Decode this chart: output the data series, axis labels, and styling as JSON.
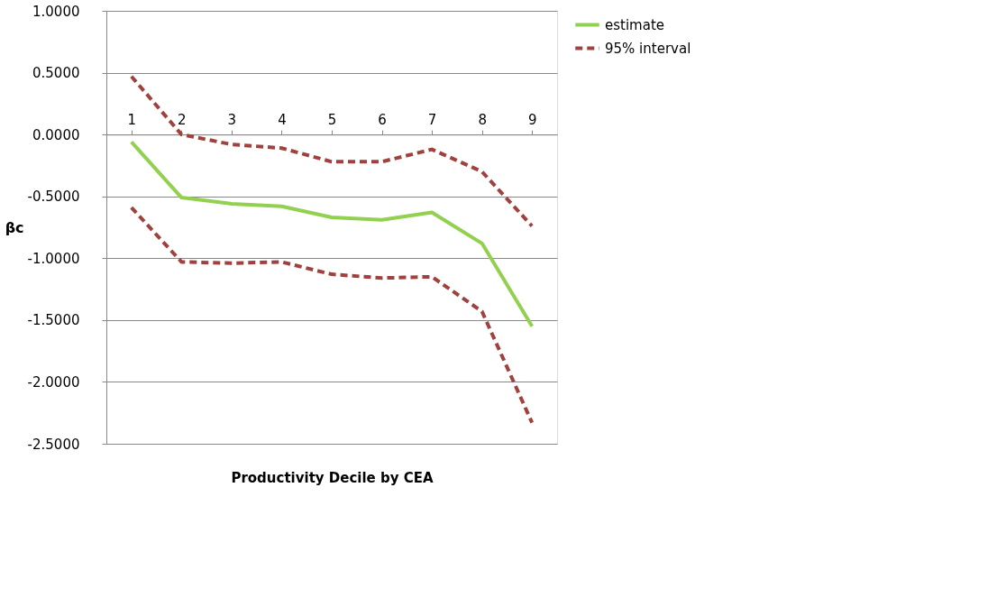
{
  "chart_data": {
    "type": "line",
    "xlabel": "Productivity Decile by CEA",
    "ylabel": "βc",
    "categories": [
      "1",
      "2",
      "3",
      "4",
      "5",
      "6",
      "7",
      "8",
      "9"
    ],
    "series": [
      {
        "name": "estimate",
        "color": "#92d050",
        "line_style": "solid",
        "values": [
          -0.06,
          -0.51,
          -0.56,
          -0.58,
          -0.67,
          -0.69,
          -0.63,
          -0.88,
          -1.55
        ]
      },
      {
        "name": "95% interval",
        "color": "#a0413d",
        "line_style": "dashed",
        "values": [
          0.47,
          0.0,
          -0.08,
          -0.11,
          -0.22,
          -0.22,
          -0.12,
          -0.3,
          -0.74
        ]
      },
      {
        "color": "#a0413d",
        "line_style": "dashed",
        "values": [
          -0.59,
          -1.03,
          -1.04,
          -1.03,
          -1.13,
          -1.16,
          -1.15,
          -1.43,
          -2.33
        ]
      }
    ],
    "ylim": [
      -2.5,
      1.0
    ],
    "yticks": [
      {
        "value": 1.0,
        "label": "1.0000"
      },
      {
        "value": 0.5,
        "label": "0.5000"
      },
      {
        "value": 0.0,
        "label": "0.0000"
      },
      {
        "value": -0.5,
        "label": "-0.5000"
      },
      {
        "value": -1.0,
        "label": "-1.0000"
      },
      {
        "value": -1.5,
        "label": "-1.5000"
      },
      {
        "value": -2.0,
        "label": "-2.0000"
      },
      {
        "value": -2.5,
        "label": "-2.5000"
      }
    ],
    "grid": "y",
    "legend": "right",
    "marker": "none"
  }
}
